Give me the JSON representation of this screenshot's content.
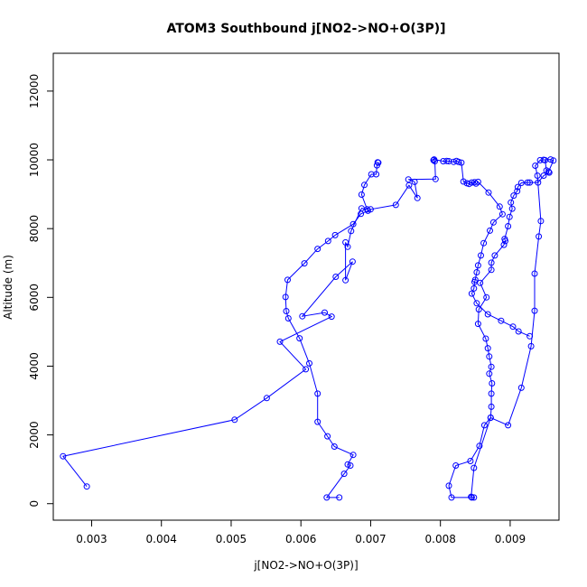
{
  "chart_data": {
    "type": "scatter",
    "title": "ATOM3 Southbound j[NO2->NO+O(3P)]",
    "xlabel": "j[NO2->NO+O(3P)]",
    "ylabel": "Altitude (m)",
    "xlim": [
      0.00245,
      0.0097
    ],
    "ylim": [
      -480,
      13100
    ],
    "x_ticks": [
      0.003,
      0.004,
      0.005,
      0.006,
      0.007,
      0.008,
      0.009
    ],
    "x_tick_labels": [
      "0.003",
      "0.004",
      "0.005",
      "0.006",
      "0.007",
      "0.008",
      "0.009"
    ],
    "y_ticks": [
      0,
      2000,
      4000,
      6000,
      8000,
      10000,
      12000
    ],
    "y_tick_labels": [
      "0",
      "2000",
      "4000",
      "6000",
      "8000",
      "10000",
      "12000"
    ],
    "grid": false,
    "line_style": "points-and-lines",
    "marker": "open-circle",
    "color": "#0000ff",
    "series": [
      {
        "x": [
          0.00293,
          0.00259,
          0.00505,
          0.00551,
          0.00607,
          0.0057,
          0.00644,
          0.00634,
          0.00602,
          0.0065,
          0.00674,
          0.00664,
          0.00664,
          0.00667,
          0.00672,
          0.00687,
          0.00695,
          0.00687,
          0.00691,
          0.00701,
          0.00708,
          0.00709,
          0.00711,
          0.0071
        ],
        "y": [
          500,
          1380,
          2440,
          3070,
          3910,
          4710,
          5440,
          5560,
          5450,
          6600,
          7040,
          6500,
          7600,
          7470,
          7930,
          8590,
          8560,
          8990,
          9270,
          9580,
          9580,
          9840,
          9920,
          9930
        ]
      },
      {
        "x": [
          0.00655,
          0.00637,
          0.00662,
          0.00671,
          0.00667,
          0.00675,
          0.00648,
          0.00638,
          0.00624,
          0.00624,
          0.00612,
          0.00598,
          0.00582,
          0.00579,
          0.00578,
          0.00581,
          0.00605,
          0.00624,
          0.00639,
          0.00649,
          0.00675,
          0.00686,
          0.00696,
          0.007,
          0.00736,
          0.00755,
          0.00767,
          0.00763,
          0.00754,
          0.00793,
          0.00792,
          0.0079,
          0.00791,
          0.00804,
          0.00809,
          0.00812,
          0.00819,
          0.00823,
          0.00826,
          0.0083,
          0.00833,
          0.00838,
          0.00841,
          0.00845,
          0.00849,
          0.00851
        ],
        "y": [
          180,
          180,
          870,
          1110,
          1140,
          1420,
          1660,
          1960,
          2380,
          3200,
          4080,
          4810,
          5390,
          5600,
          6010,
          6510,
          6990,
          7410,
          7640,
          7810,
          8130,
          8430,
          8520,
          8560,
          8690,
          9260,
          8890,
          9360,
          9430,
          9440,
          9960,
          9990,
          10010,
          9960,
          9970,
          9960,
          9940,
          9970,
          9940,
          9920,
          9370,
          9320,
          9300,
          9340,
          9350,
          9310
        ]
      },
      {
        "x": [
          0.00845,
          0.00816,
          0.00812,
          0.00822,
          0.00843,
          0.00856,
          0.00863,
          0.00872,
          0.00873,
          0.00873,
          0.00874,
          0.0087,
          0.00873,
          0.0087,
          0.00868,
          0.00865,
          0.00854,
          0.00855,
          0.00866,
          0.00857,
          0.00873,
          0.00873,
          0.00878,
          0.00891,
          0.00893,
          0.00892,
          0.00897,
          0.00899,
          0.00903,
          0.00901,
          0.00905,
          0.0091,
          0.00911,
          0.00916,
          0.00925,
          0.00928,
          0.0094,
          0.00948,
          0.00956
        ],
        "y": [
          180,
          180,
          520,
          1110,
          1240,
          1680,
          2280,
          2500,
          2820,
          3200,
          3500,
          3780,
          3980,
          4280,
          4520,
          4800,
          5230,
          5650,
          6000,
          6420,
          6800,
          7010,
          7220,
          7530,
          7640,
          7700,
          8070,
          8340,
          8580,
          8760,
          8960,
          9090,
          9210,
          9330,
          9340,
          9340,
          9340,
          9540,
          9630
        ]
      },
      {
        "x": [
          0.00848,
          0.00844,
          0.00848,
          0.00872,
          0.00897,
          0.00916,
          0.0093,
          0.00935,
          0.00935,
          0.00941,
          0.00944,
          0.00939,
          0.00936,
          0.00943,
          0.00948,
          0.00958,
          0.00962,
          0.00955,
          0.00952,
          0.0095
        ],
        "y": [
          180,
          200,
          1040,
          2500,
          2280,
          3370,
          4580,
          5610,
          6690,
          7770,
          8220,
          9540,
          9830,
          9990,
          10000,
          10010,
          9980,
          9660,
          9690,
          9990
        ]
      },
      {
        "x": [
          0.00854,
          0.00869,
          0.00885,
          0.00889,
          0.00876,
          0.00871,
          0.00862,
          0.00858,
          0.00854,
          0.00852,
          0.0085,
          0.00849,
          0.00848,
          0.00845,
          0.00852,
          0.00868,
          0.00887,
          0.00904,
          0.00912,
          0.00928
        ],
        "y": [
          9360,
          9050,
          8640,
          8420,
          8180,
          7940,
          7580,
          7220,
          6930,
          6730,
          6510,
          6450,
          6260,
          6110,
          5830,
          5510,
          5320,
          5150,
          5010,
          4870
        ]
      }
    ]
  }
}
